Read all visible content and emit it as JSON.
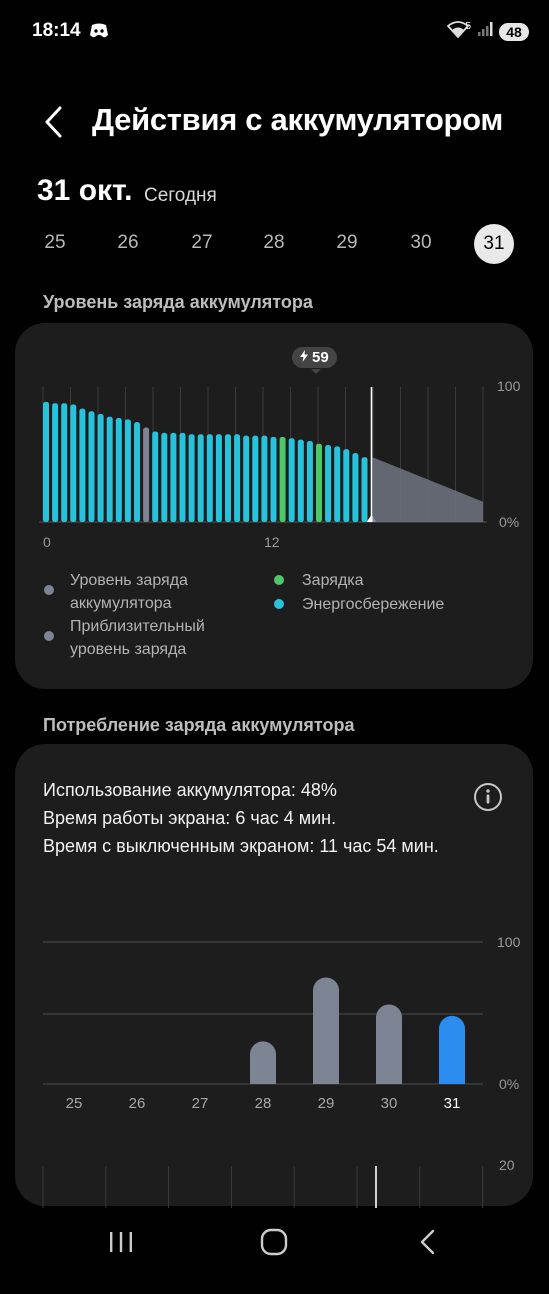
{
  "status_bar": {
    "time": "18:14",
    "battery": "48",
    "wifi_badge": "5"
  },
  "header": {
    "title": "Действия с аккумулятором"
  },
  "date": {
    "main": "31 окт.",
    "sub": "Сегодня"
  },
  "days": [
    "25",
    "26",
    "27",
    "28",
    "29",
    "30",
    "31"
  ],
  "selected_day": "31",
  "battery_level": {
    "title": "Уровень заряда аккумулятора",
    "marker_label": "59",
    "ymax_label": "100",
    "ymin_label": "0%",
    "x_labels": [
      "0",
      "12"
    ],
    "legend": {
      "level": "Уровень заряда аккумулятора",
      "approx": "Приблизительный уровень заряда",
      "charging": "Зарядка",
      "saving": "Энергосбережение"
    },
    "colors": {
      "saving": "#27c3dc",
      "charging": "#4cc86a",
      "gray": "#7d8595",
      "projection": "#6f7480"
    }
  },
  "consumption": {
    "title": "Потребление заряда аккумулятора",
    "usage_line": "Использование аккумулятора: 48%",
    "screen_on_line": "Время работы экрана: 6 час 4 мин.",
    "screen_off_line": "Время с выключенным экраном: 11 час 54 мин."
  },
  "chart_data": [
    {
      "type": "bar",
      "title": "Уровень заряда аккумулятора",
      "x": [
        0,
        1,
        2,
        3,
        4,
        5,
        6,
        7,
        8,
        9,
        10,
        11,
        12,
        13,
        14,
        15,
        16,
        17,
        18,
        19,
        20,
        21,
        22,
        23,
        24,
        25,
        26,
        27,
        28,
        29,
        30,
        31,
        32,
        33,
        34,
        35
      ],
      "values": [
        89,
        88,
        88,
        87,
        84,
        82,
        80,
        78,
        77,
        76,
        74,
        70,
        67,
        66,
        66,
        66,
        65,
        65,
        65,
        65,
        65,
        65,
        64,
        64,
        64,
        63,
        63,
        62,
        61,
        60,
        58,
        57,
        56,
        54,
        51,
        48
      ],
      "status": [
        "s",
        "s",
        "s",
        "s",
        "s",
        "s",
        "s",
        "s",
        "s",
        "s",
        "s",
        "g",
        "s",
        "s",
        "s",
        "s",
        "s",
        "s",
        "s",
        "s",
        "s",
        "s",
        "s",
        "s",
        "s",
        "s",
        "c",
        "s",
        "s",
        "s",
        "c",
        "s",
        "s",
        "s",
        "s",
        "s"
      ],
      "projection": {
        "start_value": 48,
        "end_value": 15
      },
      "xlabel": "",
      "ylabel": "",
      "ylim": [
        0,
        100
      ],
      "x_tick_labels": [
        "0",
        "12"
      ],
      "y_tick_labels": [
        "100",
        "0%"
      ],
      "grid": true,
      "legend_position": "bottom"
    },
    {
      "type": "bar",
      "title": "Потребление заряда аккумулятора",
      "categories": [
        "25",
        "26",
        "27",
        "28",
        "29",
        "30",
        "31"
      ],
      "values": [
        0,
        0,
        0,
        30,
        75,
        56,
        48
      ],
      "highlighted": "31",
      "ylim": [
        0,
        100
      ],
      "y_tick_labels": [
        "100",
        "0%"
      ],
      "grid": true
    }
  ],
  "next_chart": {
    "top_label": "20"
  }
}
